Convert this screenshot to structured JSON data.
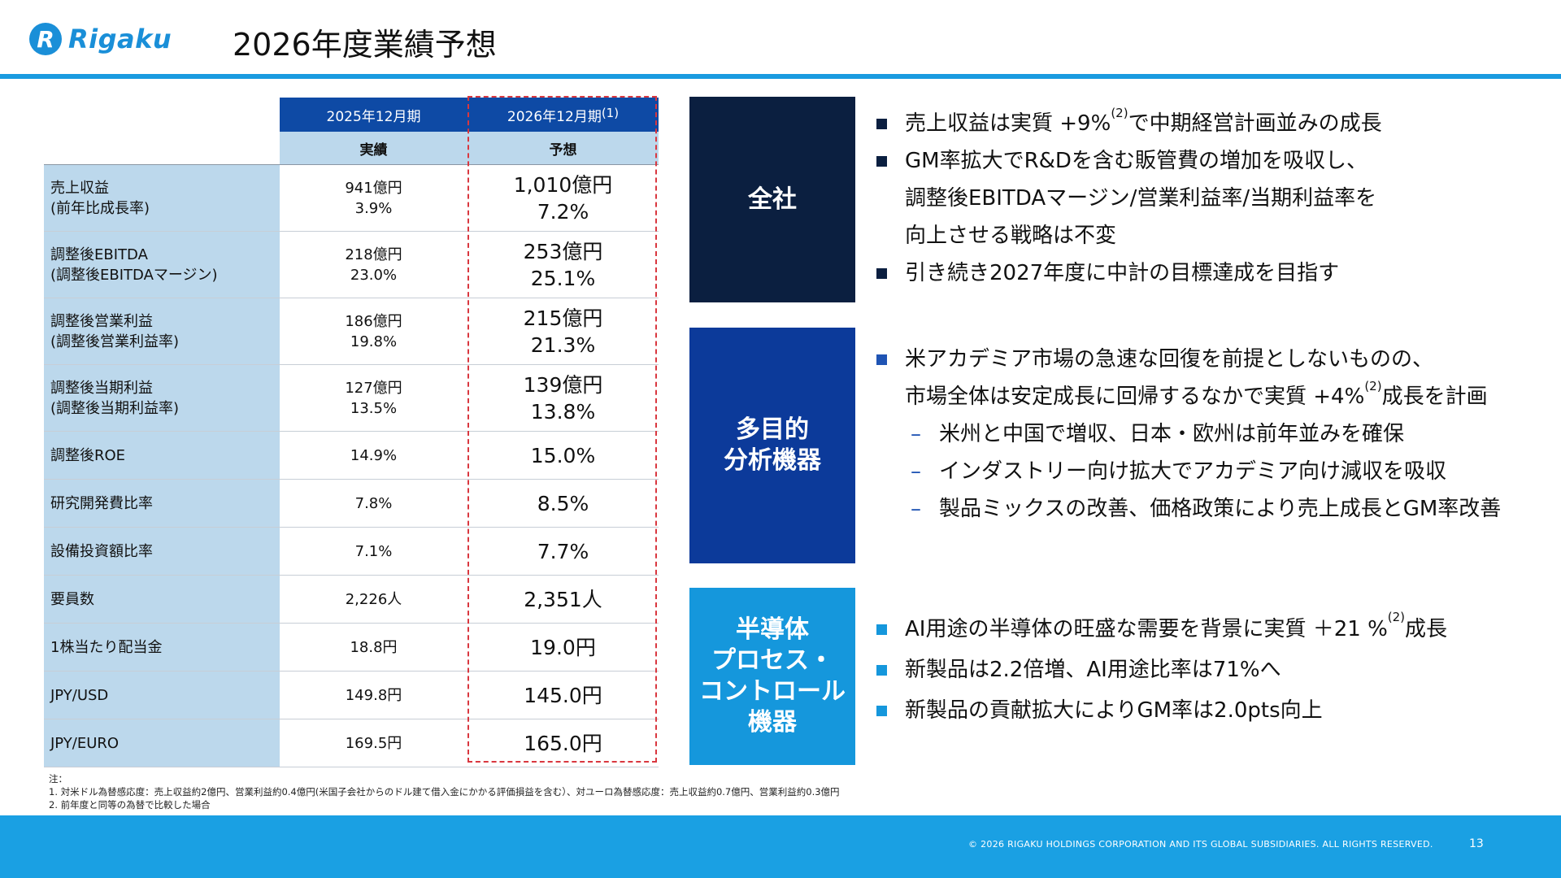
{
  "header": {
    "logo_mark": "R",
    "logo_text": "Rigaku",
    "title": "2026年度業績予想"
  },
  "table": {
    "col_2025": "2025年12月期",
    "col_2026": "2026年12月期",
    "col_2026_note": "(1)",
    "sub_2025": "実績",
    "sub_2026": "予想",
    "rows": [
      {
        "label1": "売上収益",
        "label2": "(前年比成長率)",
        "v25a": "941億円",
        "v25b": "3.9%",
        "v26a": "1,010億円",
        "v26b": "7.2%"
      },
      {
        "label1": "調整後EBITDA",
        "label2": "(調整後EBITDAマージン)",
        "v25a": "218億円",
        "v25b": "23.0%",
        "v26a": "253億円",
        "v26b": "25.1%"
      },
      {
        "label1": "調整後営業利益",
        "label2": "(調整後営業利益率)",
        "v25a": "186億円",
        "v25b": "19.8%",
        "v26a": "215億円",
        "v26b": "21.3%"
      },
      {
        "label1": "調整後当期利益",
        "label2": "(調整後当期利益率)",
        "v25a": "127億円",
        "v25b": "13.5%",
        "v26a": "139億円",
        "v26b": "13.8%"
      },
      {
        "label1": "調整後ROE",
        "v25a": "14.9%",
        "v26a": "15.0%"
      },
      {
        "label1": "研究開発費比率",
        "v25a": "7.8%",
        "v26a": "8.5%"
      },
      {
        "label1": "設備投資額比率",
        "v25a": "7.1%",
        "v26a": "7.7%"
      },
      {
        "label1": "要員数",
        "v25a": "2,226人",
        "v26a": "2,351人"
      },
      {
        "label1": "1株当たり配当金",
        "v25a": "18.8円",
        "v26a": "19.0円"
      },
      {
        "label1": "JPY/USD",
        "v25a": "149.8円",
        "v26a": "145.0円"
      },
      {
        "label1": "JPY/EURO",
        "v25a": "169.5円",
        "v26a": "165.0円"
      }
    ]
  },
  "segments": {
    "s1_name": "全社",
    "s2_line1": "多目的",
    "s2_line2": "分析機器",
    "s3_line1": "半導体",
    "s3_line2": "プロセス・",
    "s3_line3": "コントロール",
    "s3_line4": "機器"
  },
  "bullets": {
    "b1_1_pre": "売上収益は実質 +9%",
    "b1_1_sup": "(2)",
    "b1_1_post": "で中期経営計画並みの成長",
    "b1_2_l1": "GM率拡大でR&Dを含む販管費の増加を吸収し、",
    "b1_2_l2": "調整後EBITDAマージン/営業利益率/当期利益率を",
    "b1_2_l3": "向上させる戦略は不変",
    "b1_3": "引き続き2027年度に中計の目標達成を目指す",
    "b2_1_l1": "米アカデミア市場の急速な回復を前提としないものの、",
    "b2_1_l2_pre": "市場全体は安定成長に回帰するなかで実質 +4%",
    "b2_1_l2_sup": "(2)",
    "b2_1_l2_post": "成長を計画",
    "dash": "–",
    "b2_s1": "米州と中国で増収、日本・欧州は前年並みを確保",
    "b2_s2": "インダストリー向け拡大でアカデミア向け減収を吸収",
    "b2_s3": "製品ミックスの改善、価格政策により売上成長とGM率改善",
    "b3_1_pre": "AI用途の半導体の旺盛な需要を背景に実質 ＋21 %",
    "b3_1_sup": "(2)",
    "b3_1_post": "成長",
    "b3_2": "新製品は2.2倍増、AI用途比率は71%へ",
    "b3_3": "新製品の貢献拡大によりGM率は2.0pts向上"
  },
  "notes": {
    "n0": "注：",
    "n1": "1. 対米ドル為替感応度：売上収益約2億円、営業利益約0.4億円(米国子会社からのドル建て借入金にかかる評価損益を含む）、対ユーロ為替感応度：売上収益約0.7億円、営業利益約0.3億円",
    "n2": "2. 前年度と同等の為替で比較した場合"
  },
  "footer": {
    "copyright": "© 2026 RIGAKU HOLDINGS CORPORATION AND ITS GLOBAL SUBSIDIARIES. ALL RIGHTS RESERVED.",
    "page": "13"
  },
  "colors": {
    "accent": "#1a9be0",
    "navy": "#0b1f40",
    "blue": "#0c3a9a",
    "cyan": "#1597dc",
    "table_header": "#0e4aa5",
    "table_label_bg": "#bcd8ec",
    "highlight_dash": "#d9373f"
  }
}
